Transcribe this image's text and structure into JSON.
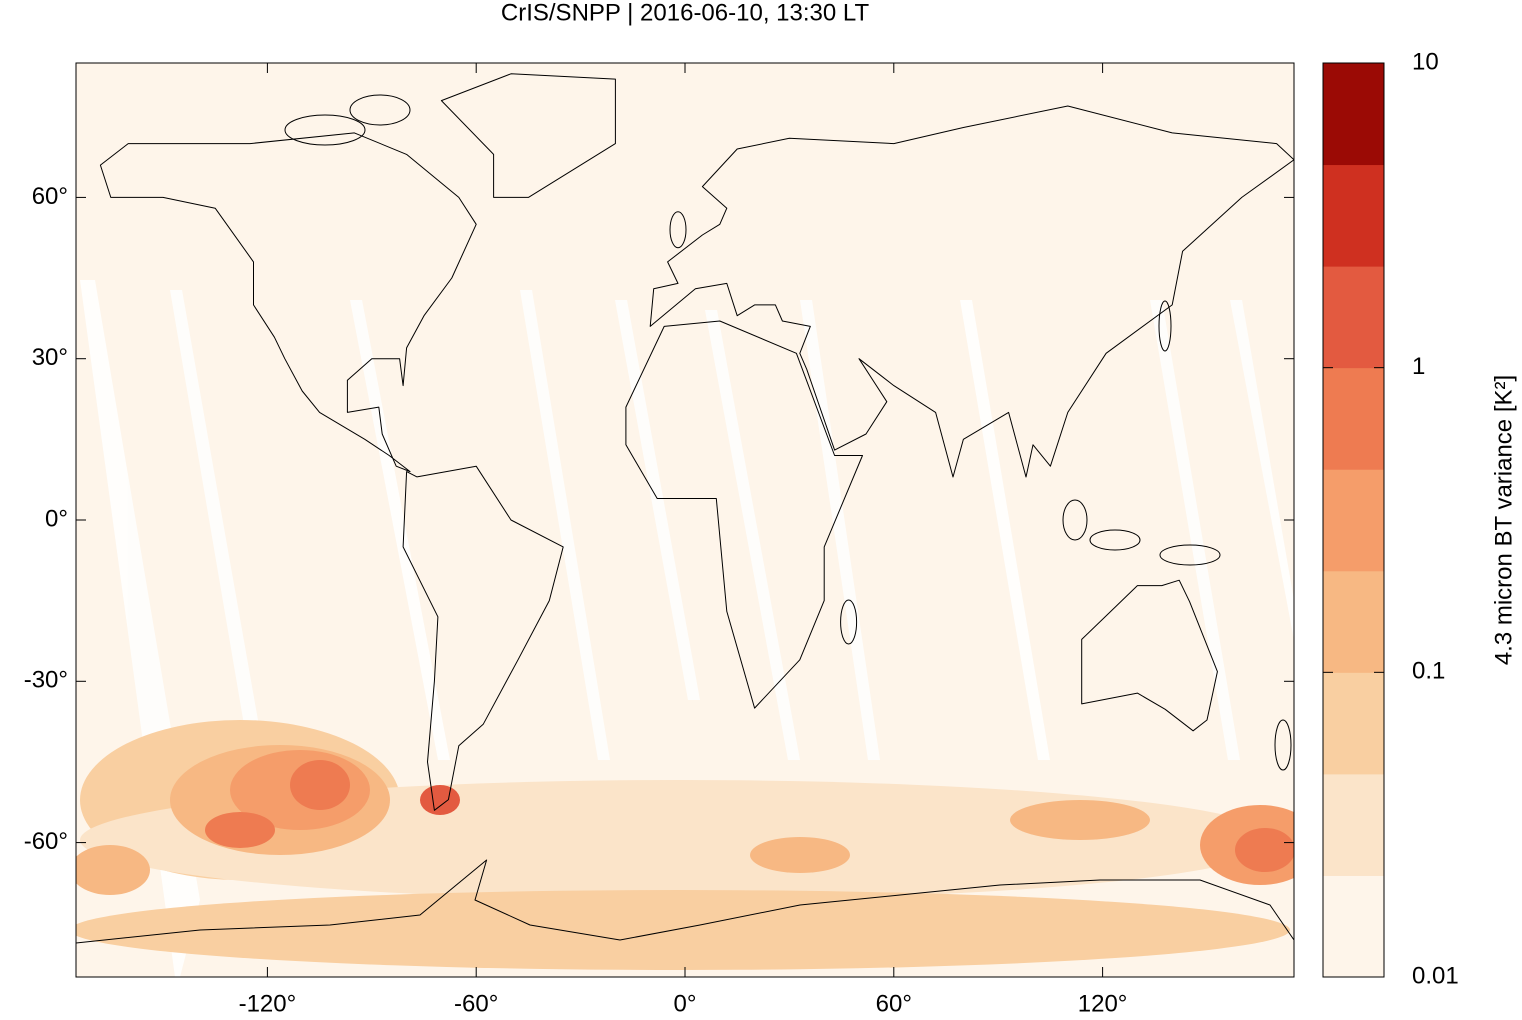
{
  "chart_data": {
    "type": "map",
    "title": "CrIS/SNPP | 2016-06-10, 13:30 LT",
    "xlim": [
      -175,
      175
    ],
    "ylim": [
      -85,
      85
    ],
    "xticks": [
      {
        "value": -120,
        "label": "-120°"
      },
      {
        "value": -60,
        "label": "-60°"
      },
      {
        "value": 0,
        "label": "0°"
      },
      {
        "value": 60,
        "label": "60°"
      },
      {
        "value": 120,
        "label": "120°"
      }
    ],
    "yticks": [
      {
        "value": -60,
        "label": "-60°"
      },
      {
        "value": -30,
        "label": "-30°"
      },
      {
        "value": 0,
        "label": "0°"
      },
      {
        "value": 30,
        "label": "30°"
      },
      {
        "value": 60,
        "label": "60°"
      }
    ],
    "colorbar": {
      "label": "4.3 micron BT variance [K²]",
      "range": [
        0.01,
        10
      ],
      "ticks": [
        0.01,
        0.1,
        1,
        10
      ],
      "log": true,
      "colors": [
        "#fef5ea",
        "#fbe4c9",
        "#f9cfa1",
        "#f7b883",
        "#f59d6a",
        "#ee7b51",
        "#e35a40",
        "#cf3020",
        "#9b0a05"
      ]
    }
  }
}
